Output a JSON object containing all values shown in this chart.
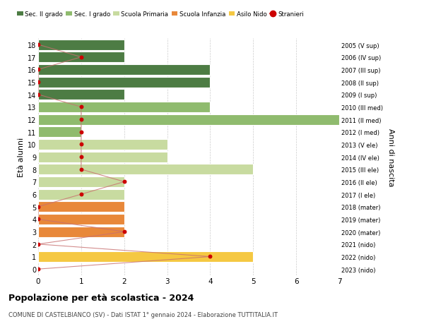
{
  "ages": [
    0,
    1,
    2,
    3,
    4,
    5,
    6,
    7,
    8,
    9,
    10,
    11,
    12,
    13,
    14,
    15,
    16,
    17,
    18
  ],
  "right_labels": [
    "2023 (nido)",
    "2022 (nido)",
    "2021 (nido)",
    "2020 (mater)",
    "2019 (mater)",
    "2018 (mater)",
    "2017 (I ele)",
    "2016 (II ele)",
    "2015 (III ele)",
    "2014 (IV ele)",
    "2013 (V ele)",
    "2012 (I med)",
    "2011 (II med)",
    "2010 (III med)",
    "2009 (I sup)",
    "2008 (II sup)",
    "2007 (III sup)",
    "2006 (IV sup)",
    "2005 (V sup)"
  ],
  "bar_values": [
    0,
    5,
    0,
    2,
    2,
    2,
    2,
    2,
    5,
    3,
    3,
    1,
    7,
    4,
    2,
    4,
    4,
    2,
    2
  ],
  "bar_colors": [
    "#f5c842",
    "#f5c842",
    "#f5c842",
    "#e8883a",
    "#e8883a",
    "#e8883a",
    "#c8dba0",
    "#c8dba0",
    "#c8dba0",
    "#c8dba0",
    "#c8dba0",
    "#8fbb6e",
    "#8fbb6e",
    "#8fbb6e",
    "#4d7c44",
    "#4d7c44",
    "#4d7c44",
    "#4d7c44",
    "#4d7c44"
  ],
  "stranieri_values": [
    0,
    4,
    0,
    2,
    0,
    0,
    1,
    2,
    1,
    1,
    1,
    1,
    1,
    1,
    0,
    0,
    0,
    1,
    0
  ],
  "stranieri_line_color": "#c87070",
  "stranieri_dot_color": "#cc0000",
  "legend_labels": [
    "Sec. II grado",
    "Sec. I grado",
    "Scuola Primaria",
    "Scuola Infanzia",
    "Asilo Nido",
    "Stranieri"
  ],
  "legend_colors": [
    "#4d7c44",
    "#8fbb6e",
    "#c8dba0",
    "#e8883a",
    "#f5c842",
    "#cc0000"
  ],
  "title": "Popolazione per età scolastica - 2024",
  "subtitle": "COMUNE DI CASTELBIANCO (SV) - Dati ISTAT 1° gennaio 2024 - Elaborazione TUTTITALIA.IT",
  "ylabel": "Età alunni",
  "ylabel_right": "Anni di nascita",
  "xlim": [
    0,
    7
  ],
  "ylim": [
    -0.5,
    18.5
  ],
  "bg_color": "#ffffff",
  "grid_color": "#cccccc",
  "bar_height": 0.85
}
